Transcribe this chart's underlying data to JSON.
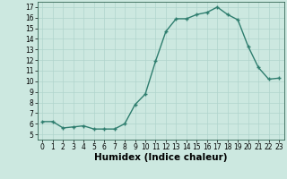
{
  "x": [
    0,
    1,
    2,
    3,
    4,
    5,
    6,
    7,
    8,
    9,
    10,
    11,
    12,
    13,
    14,
    15,
    16,
    17,
    18,
    19,
    20,
    21,
    22,
    23
  ],
  "y": [
    6.2,
    6.2,
    5.6,
    5.7,
    5.8,
    5.5,
    5.5,
    5.5,
    6.0,
    7.8,
    8.8,
    11.9,
    14.7,
    15.9,
    15.9,
    16.3,
    16.5,
    17.0,
    16.3,
    15.8,
    13.3,
    11.3,
    10.2,
    10.3
  ],
  "line_color": "#2e7d6e",
  "marker": "+",
  "marker_size": 3.5,
  "marker_color": "#2e7d6e",
  "bg_color": "#cce8e0",
  "grid_color": "#b0d4cc",
  "xlabel": "Humidex (Indice chaleur)",
  "xlim": [
    -0.5,
    23.5
  ],
  "ylim": [
    4.5,
    17.5
  ],
  "yticks": [
    5,
    6,
    7,
    8,
    9,
    10,
    11,
    12,
    13,
    14,
    15,
    16,
    17
  ],
  "xticks": [
    0,
    1,
    2,
    3,
    4,
    5,
    6,
    7,
    8,
    9,
    10,
    11,
    12,
    13,
    14,
    15,
    16,
    17,
    18,
    19,
    20,
    21,
    22,
    23
  ],
  "tick_fontsize": 5.5,
  "xlabel_fontsize": 7.5,
  "linewidth": 1.0
}
